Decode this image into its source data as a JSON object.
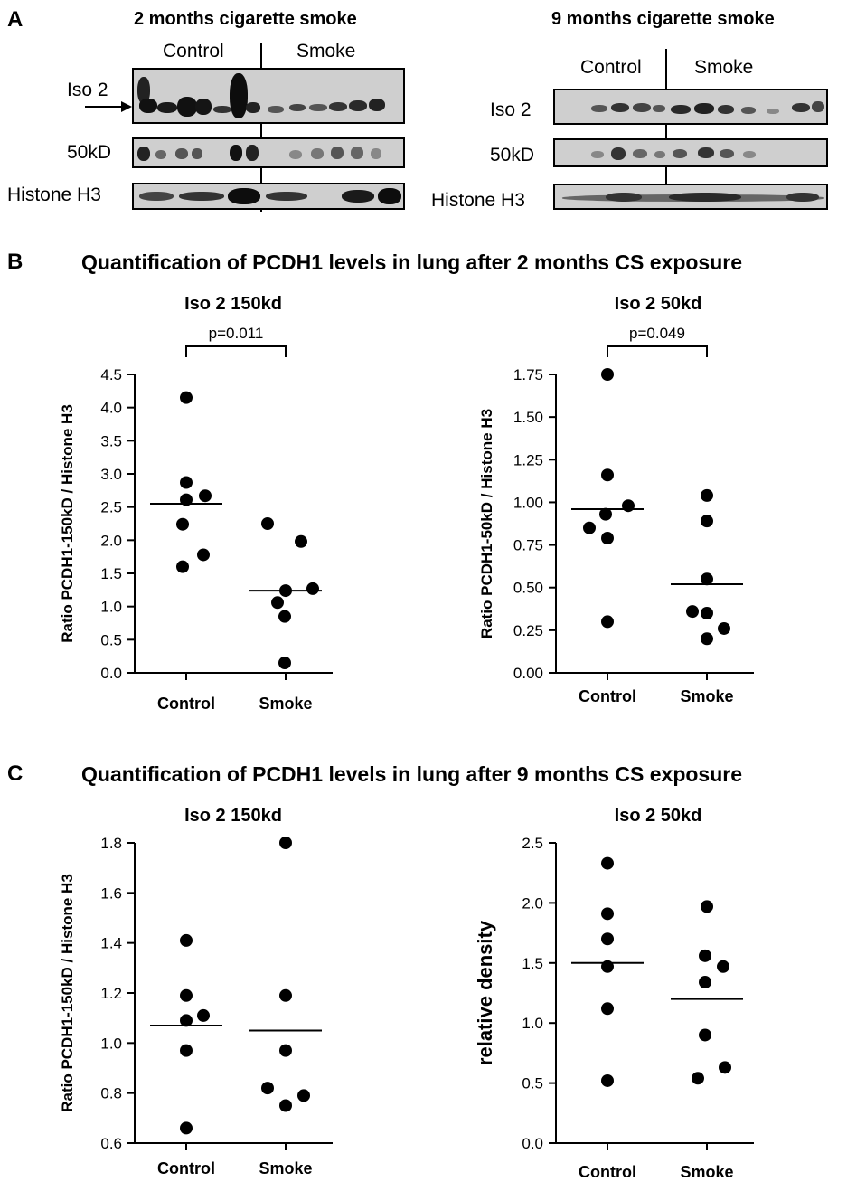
{
  "panel_a": {
    "letter": "A",
    "blot_2m": {
      "title": "2 months cigarette smoke",
      "groups": [
        "Control",
        "Smoke"
      ],
      "rows": [
        "Iso 2",
        "50kD",
        "Histone H3"
      ]
    },
    "blot_9m": {
      "title": "9 months cigarette smoke",
      "groups": [
        "Control",
        "Smoke"
      ],
      "rows": [
        "Iso 2",
        "50kD",
        "Histone H3"
      ]
    }
  },
  "panel_b": {
    "letter": "B",
    "title": "Quantification of PCDH1 levels in lung after 2 months CS exposure"
  },
  "panel_c": {
    "letter": "C",
    "title": "Quantification of PCDH1 levels in lung after 9 months CS exposure"
  },
  "chart_data": [
    {
      "type": "scatter",
      "title": "Iso 2 150kd",
      "ylabel": "Ratio PCDH1-150kD / Histone H3",
      "categories": [
        "Control",
        "Smoke"
      ],
      "ylim": [
        0,
        4.5
      ],
      "yticks": [
        0.0,
        0.5,
        1.0,
        1.5,
        2.0,
        2.5,
        3.0,
        3.5,
        4.0,
        4.5
      ],
      "tick_labels": [
        "0.0",
        "0.5",
        "1.0",
        "1.5",
        "2.0",
        "2.5",
        "3.0",
        "3.5",
        "4.0",
        "4.5"
      ],
      "series": [
        {
          "category": "Control",
          "values": [
            4.15,
            2.87,
            2.67,
            2.61,
            2.24,
            1.78,
            1.6
          ],
          "mean": 2.55
        },
        {
          "category": "Smoke",
          "values": [
            2.25,
            1.98,
            1.27,
            1.24,
            1.06,
            0.85,
            0.15
          ],
          "mean": 1.24
        }
      ],
      "significance": "p=0.011"
    },
    {
      "type": "scatter",
      "title": "Iso 2 50kd",
      "ylabel": "Ratio PCDH1-50kD / Histone H3",
      "categories": [
        "Control",
        "Smoke"
      ],
      "ylim": [
        0,
        1.75
      ],
      "yticks": [
        0.0,
        0.25,
        0.5,
        0.75,
        1.0,
        1.25,
        1.5,
        1.75
      ],
      "tick_labels": [
        "0.00",
        "0.25",
        "0.50",
        "0.75",
        "1.00",
        "1.25",
        "1.50",
        "1.75"
      ],
      "series": [
        {
          "category": "Control",
          "values": [
            1.75,
            1.16,
            0.98,
            0.93,
            0.85,
            0.79,
            0.3
          ],
          "mean": 0.96
        },
        {
          "category": "Smoke",
          "values": [
            1.04,
            0.89,
            0.55,
            0.36,
            0.35,
            0.26,
            0.2
          ],
          "mean": 0.52
        }
      ],
      "significance": "p=0.049"
    },
    {
      "type": "scatter",
      "title": "Iso 2 150kd",
      "ylabel": "Ratio PCDH1-150kD / Histone H3",
      "categories": [
        "Control",
        "Smoke"
      ],
      "ylim": [
        0.6,
        1.8
      ],
      "yticks": [
        0.6,
        0.8,
        1.0,
        1.2,
        1.4,
        1.6,
        1.8
      ],
      "tick_labels": [
        "0.6",
        "0.8",
        "1.0",
        "1.2",
        "1.4",
        "1.6",
        "1.8"
      ],
      "series": [
        {
          "category": "Control",
          "values": [
            1.41,
            1.19,
            1.11,
            1.09,
            0.97,
            0.66
          ],
          "mean": 1.07
        },
        {
          "category": "Smoke",
          "values": [
            1.8,
            1.19,
            0.97,
            0.82,
            0.79,
            0.75
          ],
          "mean": 1.05
        }
      ]
    },
    {
      "type": "scatter",
      "title": "Iso 2 50kd",
      "ylabel": "relative density",
      "categories": [
        "Control",
        "Smoke"
      ],
      "ylim": [
        0,
        2.5
      ],
      "yticks": [
        0.0,
        0.5,
        1.0,
        1.5,
        2.0,
        2.5
      ],
      "tick_labels": [
        "0.0",
        "0.5",
        "1.0",
        "1.5",
        "2.0",
        "2.5"
      ],
      "series": [
        {
          "category": "Control",
          "values": [
            2.33,
            1.91,
            1.7,
            1.47,
            1.12,
            0.52
          ],
          "mean": 1.5
        },
        {
          "category": "Smoke",
          "values": [
            1.97,
            1.56,
            1.47,
            1.34,
            0.9,
            0.63,
            0.54
          ],
          "mean": 1.2
        }
      ]
    }
  ]
}
